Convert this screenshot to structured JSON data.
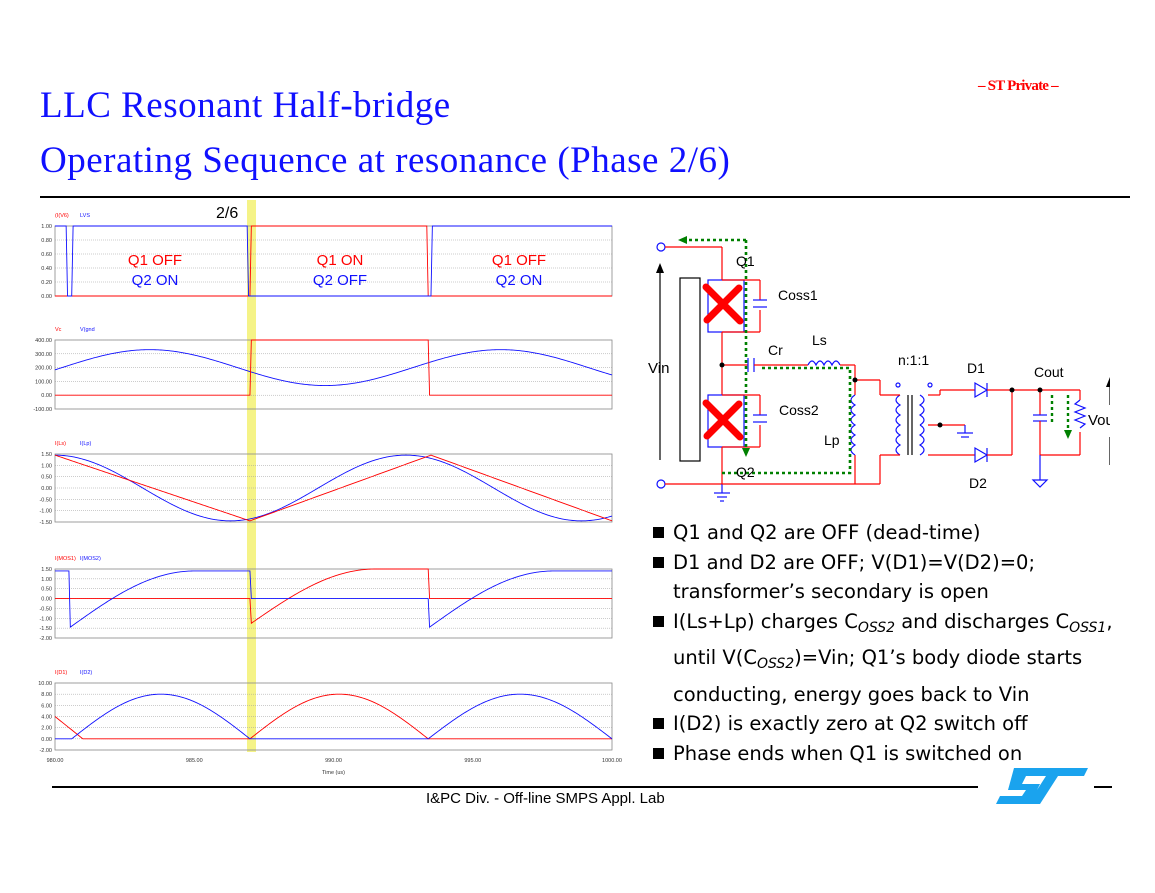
{
  "slide": {
    "title_line1": "LLC Resonant Half-bridge",
    "title_line2": "Operating Sequence at resonance (Phase 2/6)",
    "confidentiality": "– ST Private –",
    "footer": "I&PC Div. - Off-line SMPS Appl. Lab",
    "logo": "st-logo"
  },
  "chart_data": [
    {
      "type": "line",
      "series": [
        {
          "name": "(I(V6)"
        },
        {
          "name": "LVS"
        }
      ],
      "yticks": [
        "1.00",
        "0.80",
        "0.60",
        "0.40",
        "0.20",
        "0.00"
      ],
      "ylim": [
        0,
        1
      ],
      "annotation": "2/6",
      "phase_labels": [
        {
          "top": "Q1 OFF",
          "bottom": "Q2 ON"
        },
        {
          "top": "Q1 ON",
          "bottom": "Q2 OFF"
        },
        {
          "top": "Q1 OFF",
          "bottom": "Q2 ON"
        }
      ],
      "colors": {
        "q1": "#ff0000",
        "q2": "#1010ff"
      }
    },
    {
      "type": "line",
      "series": [
        {
          "name": "Vc"
        },
        {
          "name": "V(gnd"
        }
      ],
      "yticks": [
        "400.00",
        "300.00",
        "200.00",
        "100.00",
        "0.00",
        "-100.00"
      ],
      "ylim": [
        -100,
        400
      ]
    },
    {
      "type": "line",
      "series": [
        {
          "name": "I(Ls)"
        },
        {
          "name": "I(Lp)"
        }
      ],
      "yticks": [
        "1.50",
        "1.00",
        "0.50",
        "0.00",
        "-0.50",
        "-1.00",
        "-1.50"
      ],
      "ylim": [
        -1.5,
        1.5
      ]
    },
    {
      "type": "line",
      "series": [
        {
          "name": "I(MOS1)"
        },
        {
          "name": "I(MOS2)"
        }
      ],
      "yticks": [
        "1.50",
        "1.00",
        "0.50",
        "0.00",
        "-0.50",
        "-1.00",
        "-1.50",
        "-2.00"
      ],
      "ylim": [
        -2,
        1.5
      ]
    },
    {
      "type": "line",
      "series": [
        {
          "name": "I(D1)"
        },
        {
          "name": "I(D2)"
        }
      ],
      "yticks": [
        "10.00",
        "8.00",
        "6.00",
        "4.00",
        "2.00",
        "0.00",
        "-2.00"
      ],
      "ylim": [
        -2,
        10
      ],
      "xticks": [
        "980.00",
        "985.00",
        "990.00",
        "995.00",
        "1000.00"
      ],
      "xlim": [
        980,
        1000
      ],
      "xlabel": "Time (us)"
    }
  ],
  "circuit": {
    "labels": {
      "vin": "Vin",
      "q1": "Q1",
      "q2": "Q2",
      "coss1": "Coss1",
      "coss2": "Coss2",
      "cr": "Cr",
      "ls": "Ls",
      "lp": "Lp",
      "ratio": "n:1:1",
      "d1": "D1",
      "d2": "D2",
      "cout": "Cout",
      "vout": "Vout"
    },
    "colors": {
      "wire": "#ff0000",
      "part": "#1010ff",
      "current": "#008000",
      "cross": "#ff0000"
    }
  },
  "bullets": [
    {
      "text": "Q1 and Q2 are OFF (dead-time)"
    },
    {
      "text": "D1 and D2 are OFF; V(D1)=V(D2)=0; transformer’s secondary is open"
    },
    {
      "parts": [
        "I(Ls+Lp) charges C",
        "OSS2",
        " and discharges C",
        "OSS1",
        ", until V(C",
        "OSS2",
        ")=Vin; Q1’s body diode starts conducting, energy goes back to Vin"
      ]
    },
    {
      "text": "I(D2) is exactly zero at Q2 switch off"
    },
    {
      "text": "Phase ends when Q1 is switched on"
    }
  ]
}
